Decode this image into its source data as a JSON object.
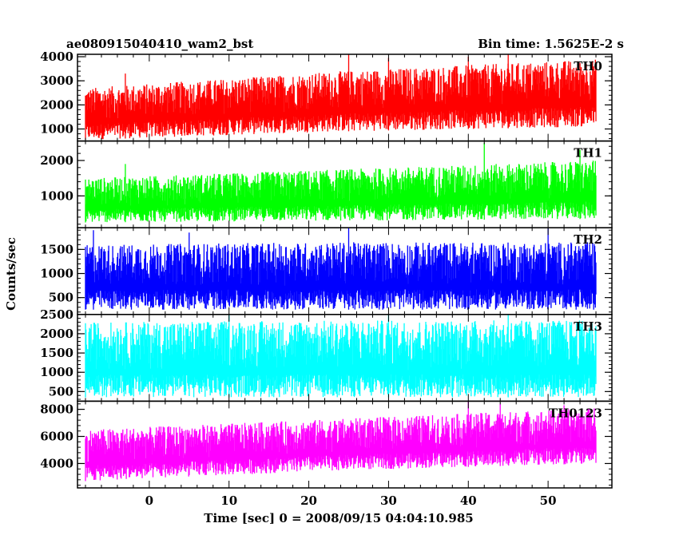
{
  "header": {
    "left_title": "ae080915040410_wam2_bst",
    "right_title": "Bin time: 1.5625E-2 s"
  },
  "chart_data": {
    "type": "line",
    "title": "ae080915040410_wam2_bst",
    "subtitle": "Bin time: 1.5625E-2 s",
    "xlabel": "Time [sec] 0 = 2008/09/15 04:04:10.985",
    "ylabel": "Counts/sec",
    "xlim": [
      -9,
      58
    ],
    "x_ticks": [
      0,
      10,
      20,
      30,
      40,
      50
    ],
    "x_tick_labels": [
      "0",
      "10",
      "20",
      "30",
      "40",
      "50"
    ],
    "x_start": -8,
    "x_end": 56,
    "bin_time": 0.015625,
    "grid": false,
    "legend": "none",
    "panels": [
      {
        "name": "TH0",
        "color": "#ff0000",
        "ylim": [
          500,
          4100
        ],
        "y_ticks": [
          1000,
          2000,
          3000,
          4000
        ],
        "y_tick_labels": [
          "1000",
          "2000",
          "3000",
          "4000"
        ],
        "trend": [
          {
            "x": -8,
            "low": 550,
            "high": 2700
          },
          {
            "x": 24,
            "low": 900,
            "high": 3400
          },
          {
            "x": 56,
            "low": 1100,
            "high": 3900
          }
        ],
        "spikes": [
          {
            "x": -3,
            "y": 3300
          },
          {
            "x": 25,
            "y": 4100
          },
          {
            "x": 30,
            "y": 3950
          },
          {
            "x": 40,
            "y": 4000
          },
          {
            "x": 45,
            "y": 4100
          }
        ]
      },
      {
        "name": "TH1",
        "color": "#00ff00",
        "ylim": [
          100,
          2550
        ],
        "y_ticks": [
          1000,
          2000
        ],
        "y_tick_labels": [
          "1000",
          "2000"
        ],
        "trend": [
          {
            "x": -8,
            "low": 250,
            "high": 1500
          },
          {
            "x": 24,
            "low": 300,
            "high": 1750
          },
          {
            "x": 56,
            "low": 350,
            "high": 2000
          }
        ],
        "spikes": [
          {
            "x": -3,
            "y": 1900
          },
          {
            "x": 42,
            "y": 2500
          },
          {
            "x": 54,
            "y": 2300
          }
        ]
      },
      {
        "name": "TH2",
        "color": "#0000ff",
        "ylim": [
          150,
          1950
        ],
        "y_ticks": [
          500,
          1000,
          1500
        ],
        "y_tick_labels": [
          "500",
          "1000",
          "1500"
        ],
        "trend": [
          {
            "x": -8,
            "low": 250,
            "high": 1600
          },
          {
            "x": 24,
            "low": 250,
            "high": 1650
          },
          {
            "x": 56,
            "low": 250,
            "high": 1650
          }
        ],
        "spikes": [
          {
            "x": -7,
            "y": 1900
          },
          {
            "x": 5,
            "y": 1850
          },
          {
            "x": 25,
            "y": 1950
          },
          {
            "x": 50,
            "y": 1950
          }
        ]
      },
      {
        "name": "TH3",
        "color": "#00ffff",
        "ylim": [
          250,
          2500
        ],
        "y_ticks": [
          500,
          1000,
          1500,
          2000,
          2500
        ],
        "y_tick_labels": [
          "500",
          "1000",
          "1500",
          "2000",
          "2500"
        ],
        "trend": [
          {
            "x": -8,
            "low": 350,
            "high": 2300
          },
          {
            "x": 24,
            "low": 350,
            "high": 2350
          },
          {
            "x": 56,
            "low": 350,
            "high": 2350
          }
        ],
        "spikes": [
          {
            "x": 10,
            "y": 2500
          },
          {
            "x": 30,
            "y": 2500
          },
          {
            "x": 45,
            "y": 2500
          }
        ]
      },
      {
        "name": "TH0123",
        "color": "#ff00ff",
        "ylim": [
          2200,
          8600
        ],
        "y_ticks": [
          4000,
          6000,
          8000
        ],
        "y_tick_labels": [
          "4000",
          "6000",
          "8000"
        ],
        "trend": [
          {
            "x": -8,
            "low": 2700,
            "high": 6500
          },
          {
            "x": 24,
            "low": 3500,
            "high": 7300
          },
          {
            "x": 56,
            "low": 4000,
            "high": 8100
          }
        ],
        "spikes": [
          {
            "x": 40,
            "y": 8600
          },
          {
            "x": 44,
            "y": 8400
          },
          {
            "x": 52,
            "y": 8300
          }
        ]
      }
    ]
  }
}
